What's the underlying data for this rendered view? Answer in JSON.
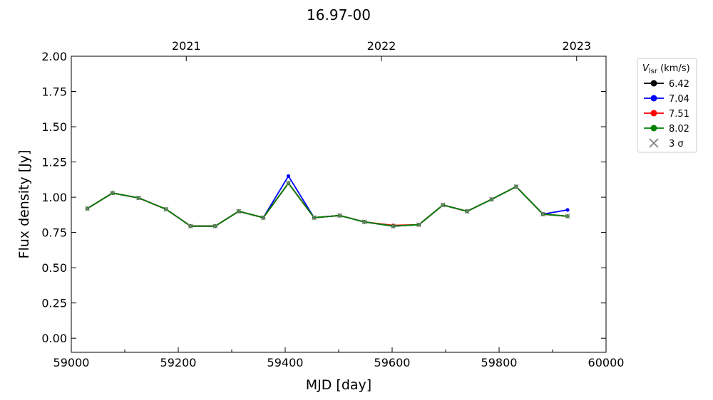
{
  "chart_data": {
    "type": "line",
    "title": "16.97-00",
    "xlabel": "MJD [day]",
    "ylabel": "Flux density [Jy]",
    "xlim": [
      59000,
      60000
    ],
    "ylim": [
      -0.1,
      2.0
    ],
    "x_ticks": [
      59000,
      59200,
      59400,
      59600,
      59800,
      60000
    ],
    "x_minor_ticks": [
      59100,
      59300,
      59500,
      59700,
      59900
    ],
    "y_ticks": [
      0.0,
      0.25,
      0.5,
      0.75,
      1.0,
      1.25,
      1.5,
      1.75,
      2.0
    ],
    "y_tick_labels": [
      "0.00",
      "0.25",
      "0.50",
      "0.75",
      "1.00",
      "1.25",
      "1.50",
      "1.75",
      "2.00"
    ],
    "top_axis": {
      "ticks": [
        {
          "x": 59215,
          "label": "2021"
        },
        {
          "x": 59580,
          "label": "2022"
        },
        {
          "x": 59945,
          "label": "2023"
        }
      ]
    },
    "legend": {
      "title_main": "V",
      "title_sub": "lsr",
      "title_unit": " (km/s)",
      "position": "outside-right",
      "entries": [
        {
          "label": "6.42",
          "color": "#000000",
          "marker": "circle"
        },
        {
          "label": "7.04",
          "color": "#0000ff",
          "marker": "circle"
        },
        {
          "label": "7.51",
          "color": "#ff0000",
          "marker": "circle"
        },
        {
          "label": "8.02",
          "color": "#008000",
          "marker": "circle"
        },
        {
          "label": "3 σ",
          "color": "#808080",
          "marker": "x"
        }
      ]
    },
    "series": [
      {
        "name": "6.42",
        "color": "#000000",
        "points": [
          [
            59030,
            0.92
          ],
          [
            59077,
            1.03
          ],
          [
            59126,
            0.995
          ],
          [
            59177,
            0.915
          ],
          [
            59223,
            0.795
          ],
          [
            59269,
            0.795
          ],
          [
            59313,
            0.9
          ],
          [
            59359,
            0.855
          ],
          [
            59406,
            1.1
          ],
          [
            59454,
            0.855
          ],
          [
            59502,
            0.87
          ],
          [
            59548,
            0.825
          ],
          [
            59602,
            0.795
          ],
          [
            59650,
            0.805
          ],
          [
            59695,
            0.945
          ],
          [
            59740,
            0.9
          ],
          [
            59786,
            0.985
          ],
          [
            59832,
            1.075
          ],
          [
            59882,
            0.88
          ],
          [
            59928,
            0.865
          ]
        ]
      },
      {
        "name": "7.04",
        "color": "#0000ff",
        "points": [
          [
            59030,
            0.92
          ],
          [
            59077,
            1.03
          ],
          [
            59126,
            0.995
          ],
          [
            59177,
            0.915
          ],
          [
            59223,
            0.795
          ],
          [
            59269,
            0.795
          ],
          [
            59313,
            0.9
          ],
          [
            59359,
            0.855
          ],
          [
            59406,
            1.15
          ],
          [
            59454,
            0.855
          ],
          [
            59502,
            0.87
          ],
          [
            59548,
            0.825
          ],
          [
            59602,
            0.795
          ],
          [
            59650,
            0.805
          ],
          [
            59695,
            0.945
          ],
          [
            59740,
            0.9
          ],
          [
            59786,
            0.985
          ],
          [
            59832,
            1.075
          ],
          [
            59882,
            0.88
          ],
          [
            59928,
            0.91
          ]
        ]
      },
      {
        "name": "7.51",
        "color": "#ff0000",
        "points": [
          [
            59030,
            0.92
          ],
          [
            59077,
            1.03
          ],
          [
            59126,
            0.995
          ],
          [
            59177,
            0.915
          ],
          [
            59223,
            0.795
          ],
          [
            59269,
            0.795
          ],
          [
            59313,
            0.9
          ],
          [
            59359,
            0.855
          ],
          [
            59406,
            1.1
          ],
          [
            59454,
            0.855
          ],
          [
            59502,
            0.87
          ],
          [
            59548,
            0.825
          ],
          [
            59602,
            0.8
          ],
          [
            59650,
            0.805
          ],
          [
            59695,
            0.945
          ],
          [
            59740,
            0.9
          ],
          [
            59786,
            0.985
          ],
          [
            59832,
            1.075
          ],
          [
            59882,
            0.88
          ],
          [
            59928,
            0.865
          ]
        ]
      },
      {
        "name": "8.02",
        "color": "#008000",
        "points": [
          [
            59030,
            0.92
          ],
          [
            59077,
            1.03
          ],
          [
            59126,
            0.995
          ],
          [
            59177,
            0.915
          ],
          [
            59223,
            0.795
          ],
          [
            59269,
            0.795
          ],
          [
            59313,
            0.9
          ],
          [
            59359,
            0.855
          ],
          [
            59406,
            1.1
          ],
          [
            59454,
            0.855
          ],
          [
            59502,
            0.87
          ],
          [
            59548,
            0.825
          ],
          [
            59602,
            0.795
          ],
          [
            59650,
            0.805
          ],
          [
            59695,
            0.945
          ],
          [
            59740,
            0.9
          ],
          [
            59786,
            0.985
          ],
          [
            59832,
            1.075
          ],
          [
            59882,
            0.88
          ],
          [
            59928,
            0.865
          ]
        ]
      }
    ],
    "three_sigma_points": [
      [
        59030,
        0.92
      ],
      [
        59077,
        1.03
      ],
      [
        59126,
        0.995
      ],
      [
        59177,
        0.915
      ],
      [
        59223,
        0.795
      ],
      [
        59269,
        0.795
      ],
      [
        59313,
        0.9
      ],
      [
        59359,
        0.855
      ],
      [
        59406,
        1.1
      ],
      [
        59454,
        0.855
      ],
      [
        59502,
        0.87
      ],
      [
        59548,
        0.825
      ],
      [
        59602,
        0.795
      ],
      [
        59650,
        0.805
      ],
      [
        59695,
        0.945
      ],
      [
        59740,
        0.9
      ],
      [
        59786,
        0.985
      ],
      [
        59832,
        1.075
      ],
      [
        59882,
        0.88
      ],
      [
        59928,
        0.865
      ]
    ],
    "grid": false
  }
}
